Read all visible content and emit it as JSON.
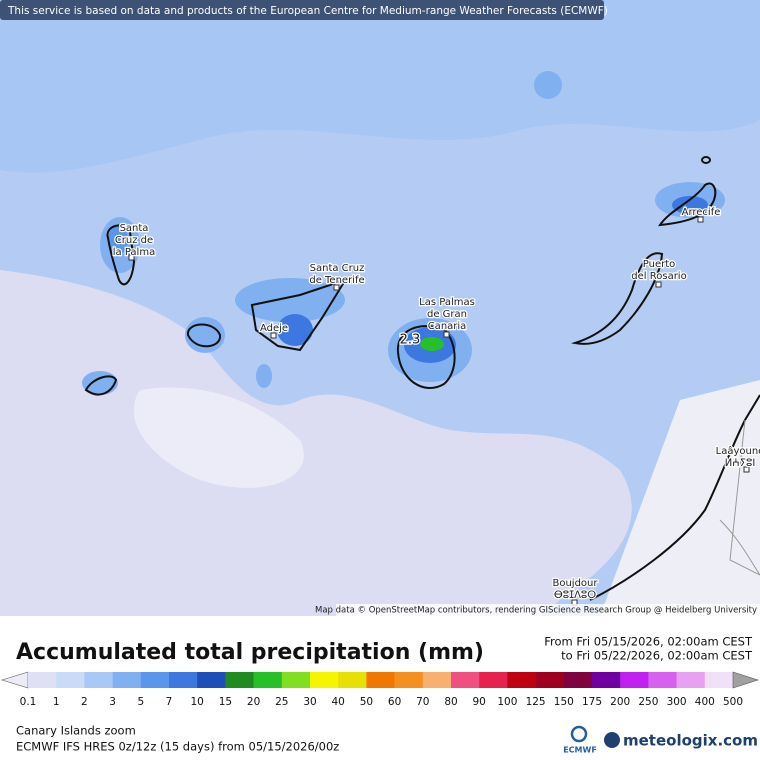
{
  "banner": "This service is based on data and products of the European Centre for Medium-range Weather Forecasts (ECMWF)",
  "places": [
    {
      "lines": [
        "Santa",
        "Cruz de",
        "la Palma"
      ]
    },
    {
      "lines": [
        "Santa Cruz",
        "de Tenerife"
      ]
    },
    {
      "lines": [
        "Adeje"
      ]
    },
    {
      "lines": [
        "Las Palmas",
        "de Gran",
        "Canaria"
      ]
    },
    {
      "lines": [
        "Puerto",
        "del Rosario"
      ]
    },
    {
      "lines": [
        "Arrecife"
      ]
    },
    {
      "lines": [
        "Laâyoune",
        "ⵍⵄⵢⵓⵏ"
      ]
    },
    {
      "lines": [
        "Boujdour",
        "ⴱⵓⵊⴷⵓⵔ"
      ]
    }
  ],
  "max_label": "2.3",
  "attribution": "Map data © OpenStreetMap contributors, rendering GIScience Research Group @ Heidelberg University",
  "title": "Accumulated total precipitation (mm)",
  "period": [
    "From Fri 05/15/2026, 02:00am CEST",
    "to Fri 05/22/2026, 02:00am CEST"
  ],
  "colorbar": {
    "labels": [
      0.1,
      1,
      2,
      3,
      5,
      7,
      10,
      15,
      20,
      25,
      30,
      40,
      50,
      60,
      70,
      80,
      90,
      100,
      125,
      150,
      175,
      200,
      250,
      300,
      400,
      500
    ],
    "colors": [
      "#ececf8",
      "#e0e0f5",
      "#c8dcf8",
      "#a8c8f5",
      "#80b0f0",
      "#5a96ec",
      "#3d78e0",
      "#1e4fb8",
      "#1e8c1e",
      "#28c028",
      "#80e020",
      "#f5f500",
      "#e8e000",
      "#f07800",
      "#f59020",
      "#f8b070",
      "#f05080",
      "#e82050",
      "#c00010",
      "#a00020",
      "#800040",
      "#7000a0",
      "#c020f0",
      "#d860f0",
      "#e8a0f0",
      "#f0e0f8",
      "#c8c8c8",
      "#a0a0a0"
    ]
  },
  "footer": [
    "Canary Islands zoom",
    "ECMWF IFS HRES 0z/12z (15 days) from 05/15/2026/00z"
  ],
  "logos": {
    "ecmwf": "ECMWF",
    "meteologix": "meteologix.com"
  }
}
